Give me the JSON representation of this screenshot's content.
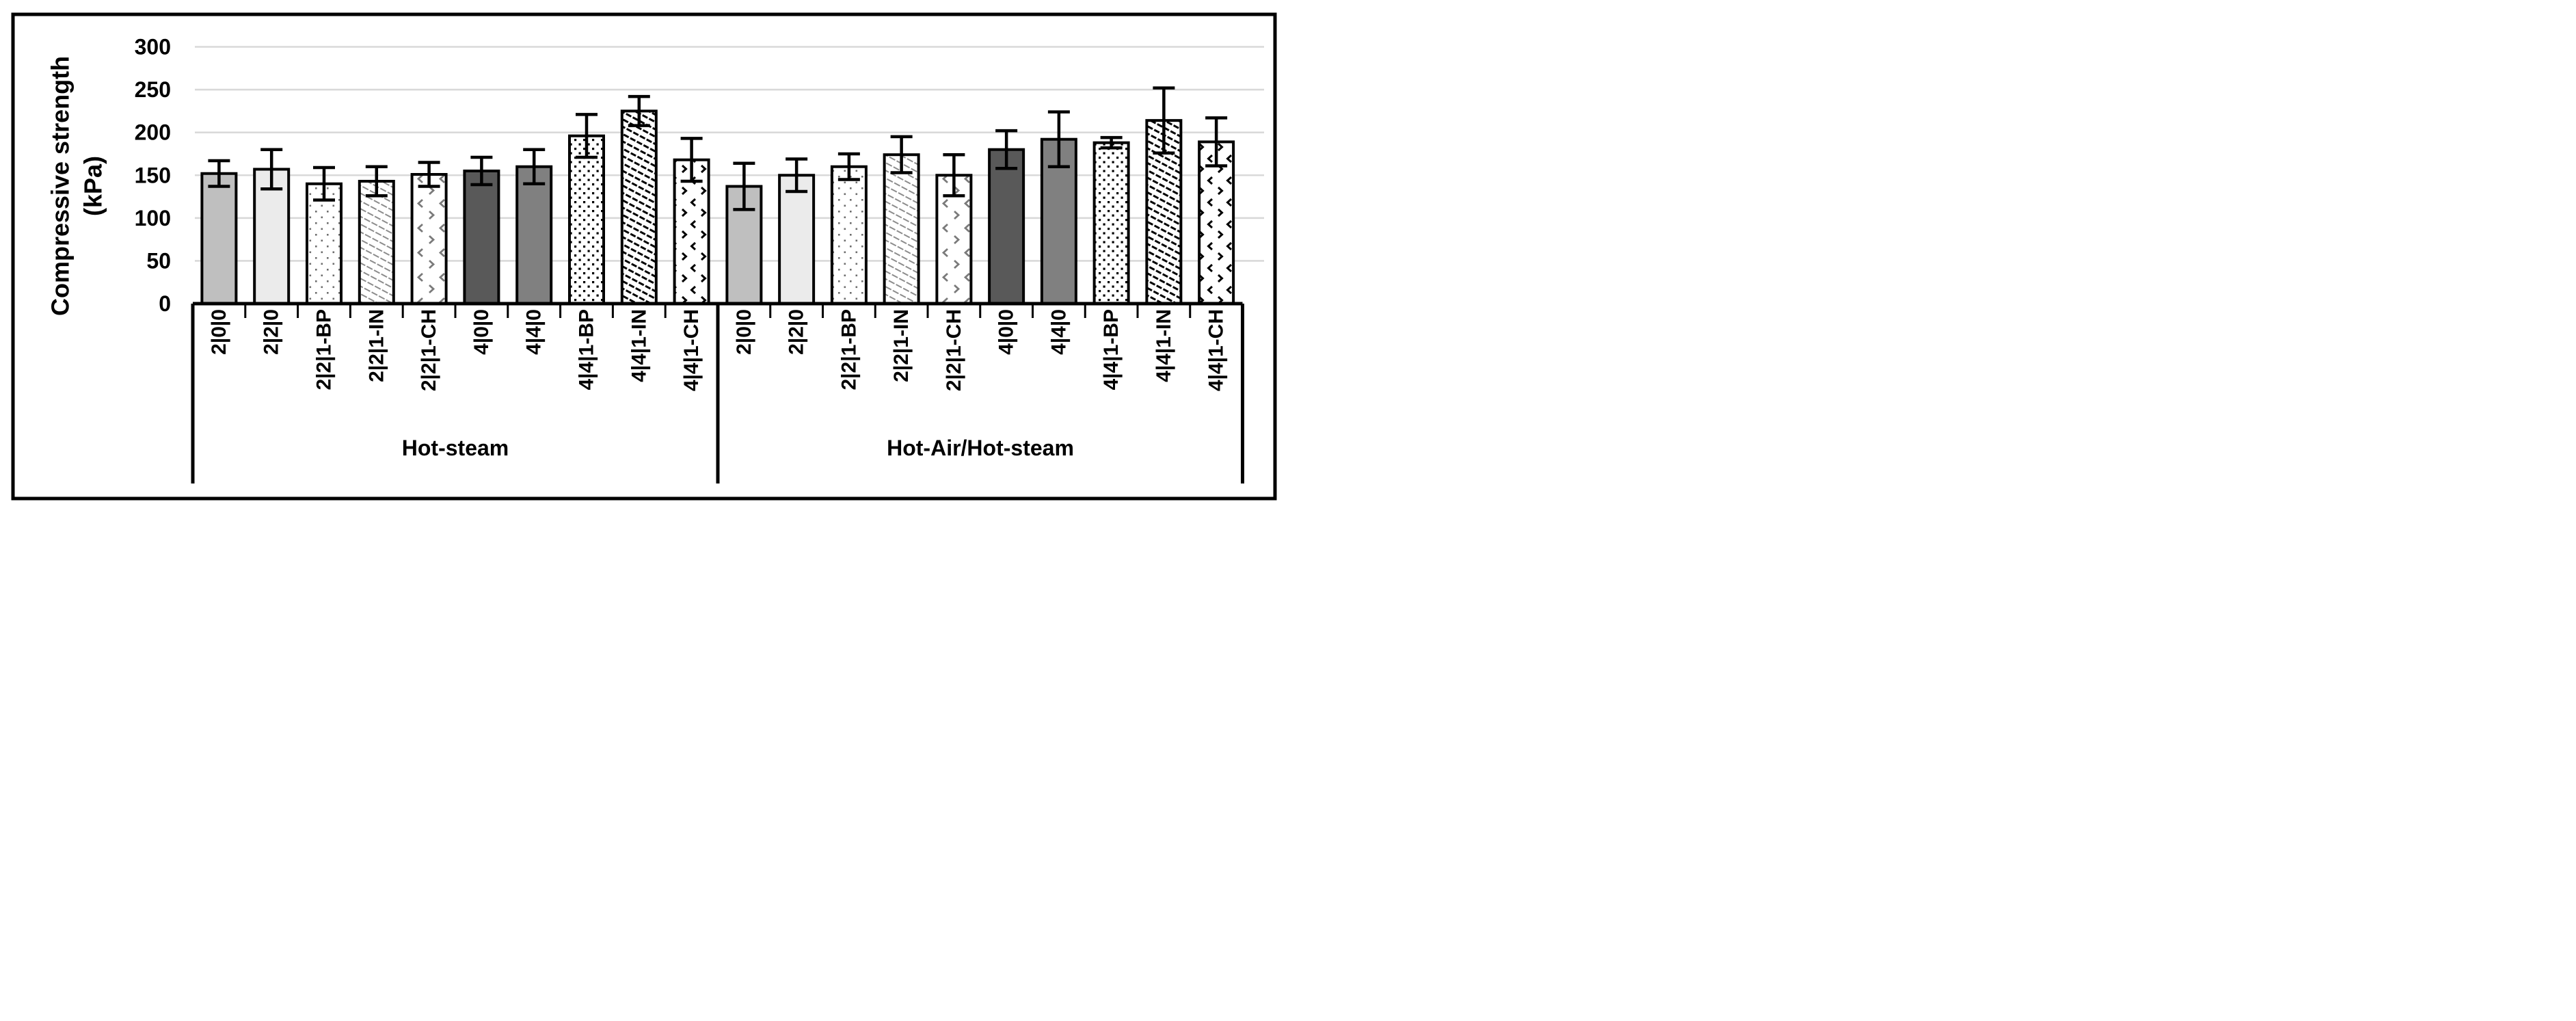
{
  "chart_data": {
    "type": "bar",
    "title": "",
    "ylabel_line1": "Compressive strength",
    "ylabel_line2": "(kPa)",
    "ylim": [
      0,
      300
    ],
    "yticks": [
      0,
      50,
      100,
      150,
      200,
      250,
      300
    ],
    "grid": true,
    "legend": "none",
    "categories": [
      "2|0|0",
      "2|2|0",
      "2|2|1-BP",
      "2|2|1-IN",
      "2|2|1-CH",
      "4|0|0",
      "4|4|0",
      "4|4|1-BP",
      "4|4|1-IN",
      "4|4|1-CH"
    ],
    "groups": [
      {
        "label": "Hot-steam",
        "values": [
          152,
          157,
          140,
          143,
          151,
          155,
          160,
          196,
          225,
          168
        ],
        "errors": [
          15,
          23,
          19,
          17,
          14,
          16,
          20,
          25,
          17,
          25
        ]
      },
      {
        "label": "Hot-Air/Hot-steam",
        "values": [
          137,
          150,
          160,
          174,
          150,
          180,
          192,
          188,
          214,
          189
        ],
        "errors": [
          27,
          19,
          15,
          21,
          24,
          22,
          32,
          6,
          38,
          28
        ]
      }
    ],
    "bar_styles": [
      {
        "category": "2|0|0",
        "fill": "solid",
        "color": "#bfbfbf"
      },
      {
        "category": "2|2|0",
        "fill": "solid",
        "color": "#ebebeb"
      },
      {
        "category": "2|2|1-BP",
        "fill": "pattern",
        "pattern": "dots-gray"
      },
      {
        "category": "2|2|1-IN",
        "fill": "pattern",
        "pattern": "diag-gray"
      },
      {
        "category": "2|2|1-CH",
        "fill": "pattern",
        "pattern": "chevron-gray"
      },
      {
        "category": "4|0|0",
        "fill": "solid",
        "color": "#595959"
      },
      {
        "category": "4|4|0",
        "fill": "solid",
        "color": "#808080"
      },
      {
        "category": "4|4|1-BP",
        "fill": "pattern",
        "pattern": "dots-black"
      },
      {
        "category": "4|4|1-IN",
        "fill": "pattern",
        "pattern": "diag-black"
      },
      {
        "category": "4|4|1-CH",
        "fill": "pattern",
        "pattern": "chevron-black"
      }
    ],
    "colors": {
      "background": "#ffffff",
      "border": "#000000",
      "gridline": "#d9d9d9",
      "axis": "#000000",
      "bar_outline": "#000000",
      "error_bar": "#000000"
    }
  }
}
